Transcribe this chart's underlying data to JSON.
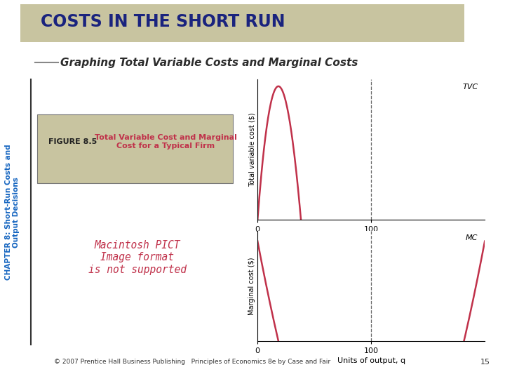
{
  "title": "COSTS IN THE SHORT RUN",
  "subtitle": "Graphing Total Variable Costs and Marginal Costs",
  "chapter_label": "CHAPTER 8: Short-Run Costs and\nOutput Decisions",
  "figure_label_bold": "FIGURE 8.5",
  "figure_label_desc": "Total Variable Cost and Marginal\nCost for a Typical Firm",
  "tvc_label": "TVC",
  "mc_label": "MC",
  "tvc_ylabel": "Total variable cost ($)",
  "mc_ylabel": "Marginal cost ($)",
  "xlabel": "Units of output, q",
  "footer": "© 2007 Prentice Hall Business Publishing   Principles of Economics 8e by Case and Fair",
  "page_num": "15",
  "curve_color": "#c0314a",
  "dot_color": "#222222",
  "dashed_color": "#666666",
  "background_color": "#ffffff",
  "title_bg_color": "#c8c4a0",
  "title_color": "#1a237e",
  "subtitle_color": "#2c2c2c",
  "chapter_color": "#1565c0",
  "figure_box_bg": "#c8c4a0",
  "figure_label_title_color": "#222222",
  "figure_label_desc_color": "#c0314a",
  "mac_text_color": "#c0314a",
  "mac_text": "Macintosh PICT\nImage format\nis not supported"
}
